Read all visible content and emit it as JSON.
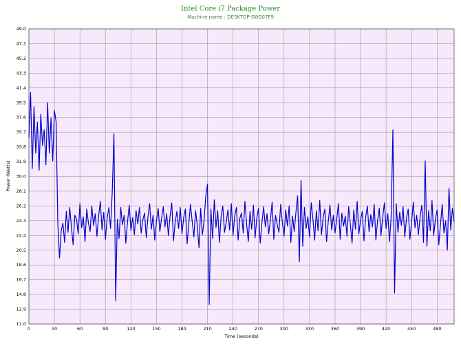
{
  "chart_data": {
    "type": "line",
    "title": "Intel Core i7 Package Power",
    "subtitle": "Machine name : DESKTOP-G8G07F9",
    "ylabel": "Power (Watts)",
    "xlabel": "Time (seconds)",
    "color": "#0000cc",
    "grid": true,
    "xlim": [
      0,
      500
    ],
    "xticks": [
      0,
      30,
      60,
      90,
      120,
      150,
      180,
      210,
      240,
      270,
      300,
      330,
      360,
      390,
      420,
      450,
      480
    ],
    "ylim": [
      11,
      49
    ],
    "yticks": [
      {
        "value": 11,
        "label": "11.0"
      },
      12.9,
      14.8,
      16.7,
      18.6,
      20.5,
      22.4,
      24.3,
      26.2,
      28.1,
      {
        "value": 30,
        "label": "30.0"
      },
      31.9,
      33.8,
      35.7,
      37.6,
      39.5,
      41.4,
      43.3,
      45.2,
      47.1,
      {
        "value": 49,
        "label": "49.0"
      }
    ],
    "x": [
      0,
      2,
      4,
      6,
      8,
      10,
      12,
      14,
      16,
      18,
      20,
      22,
      24,
      26,
      28,
      30,
      32,
      34,
      36,
      38,
      40,
      42,
      44,
      46,
      48,
      50,
      52,
      54,
      56,
      58,
      60,
      62,
      64,
      66,
      68,
      70,
      72,
      74,
      76,
      78,
      80,
      82,
      84,
      86,
      88,
      90,
      92,
      94,
      96,
      98,
      100,
      102,
      104,
      106,
      108,
      110,
      112,
      114,
      116,
      118,
      120,
      122,
      124,
      126,
      128,
      130,
      132,
      134,
      136,
      138,
      140,
      142,
      144,
      146,
      148,
      150,
      152,
      154,
      156,
      158,
      160,
      162,
      164,
      166,
      168,
      170,
      172,
      174,
      176,
      178,
      180,
      182,
      184,
      186,
      188,
      190,
      192,
      194,
      196,
      198,
      200,
      202,
      204,
      206,
      208,
      210,
      212,
      214,
      216,
      218,
      220,
      222,
      224,
      226,
      228,
      230,
      232,
      234,
      236,
      238,
      240,
      242,
      244,
      246,
      248,
      250,
      252,
      254,
      256,
      258,
      260,
      262,
      264,
      266,
      268,
      270,
      272,
      274,
      276,
      278,
      280,
      282,
      284,
      286,
      288,
      290,
      292,
      294,
      296,
      298,
      300,
      302,
      304,
      306,
      308,
      310,
      312,
      314,
      316,
      318,
      320,
      322,
      324,
      326,
      328,
      330,
      332,
      334,
      336,
      338,
      340,
      342,
      344,
      346,
      348,
      350,
      352,
      354,
      356,
      358,
      360,
      362,
      364,
      366,
      368,
      370,
      372,
      374,
      376,
      378,
      380,
      382,
      384,
      386,
      388,
      390,
      392,
      394,
      396,
      398,
      400,
      402,
      404,
      406,
      408,
      410,
      412,
      414,
      416,
      418,
      420,
      422,
      424,
      426,
      428,
      430,
      432,
      434,
      436,
      438,
      440,
      442,
      444,
      446,
      448,
      450,
      452,
      454,
      456,
      458,
      460,
      462,
      464,
      466,
      468,
      470,
      472,
      474,
      476,
      478,
      480,
      482,
      484,
      486,
      488,
      490,
      492,
      494,
      496,
      498,
      500
    ],
    "values": [
      35,
      40.8,
      31,
      39,
      33,
      37,
      30.8,
      38,
      34,
      36,
      31.5,
      39.5,
      33,
      37.5,
      32,
      38.5,
      37,
      24,
      19.5,
      23,
      24,
      21.5,
      25.5,
      22.8,
      26,
      23.5,
      21.2,
      25,
      24.5,
      22.6,
      26.5,
      23.4,
      24.8,
      21.6,
      25.8,
      24,
      22.9,
      26.2,
      23.7,
      25.2,
      22.3,
      24.9,
      26.8,
      23.1,
      25.4,
      21.9,
      24.6,
      26,
      23.3,
      28,
      35.5,
      14,
      24.5,
      22,
      26,
      23.8,
      25,
      21.4,
      24.2,
      26.3,
      23,
      24.7,
      22.5,
      25.6,
      23.9,
      26,
      22.7,
      24.4,
      25.3,
      22.1,
      24.8,
      26.5,
      23.2,
      25,
      21.8,
      24.3,
      25.9,
      22.9,
      24.6,
      26.1,
      23.5,
      25.2,
      22.4,
      24.9,
      26.6,
      21.7,
      24.1,
      25.5,
      23.3,
      26,
      22.6,
      24.7,
      25.8,
      21.3,
      23.9,
      26.4,
      24.2,
      22.2,
      25.6,
      23.7,
      20.8,
      25.9,
      22.5,
      24.3,
      27.5,
      29,
      13.5,
      25.8,
      22,
      27,
      23.4,
      25.6,
      21.5,
      24.8,
      26.2,
      22.8,
      24.1,
      25.7,
      23.1,
      26.5,
      22.4,
      24.9,
      26,
      21.8,
      24.6,
      25.3,
      22.7,
      26.8,
      23.9,
      21.6,
      25.5,
      23.2,
      26.3,
      22.1,
      24.7,
      25.9,
      21.4,
      24,
      26.1,
      23.5,
      25.2,
      22.6,
      24.4,
      26.7,
      21.9,
      25,
      23.8,
      22.8,
      26.4,
      24.1,
      22.3,
      25.7,
      23.6,
      26.2,
      21.5,
      24.9,
      22.9,
      25.4,
      27.5,
      19,
      29.5,
      21,
      26,
      23.3,
      24.8,
      22.2,
      26.6,
      24.5,
      21.8,
      25.6,
      23,
      26.9,
      22.5,
      24.7,
      25.8,
      21.6,
      24.2,
      26.3,
      23.1,
      25,
      22.7,
      24.6,
      26.5,
      21.9,
      25.3,
      23.6,
      24.9,
      22.3,
      26.1,
      23.8,
      21.4,
      25.7,
      23.2,
      26.8,
      22.6,
      24.4,
      25.5,
      21.7,
      24.8,
      26.2,
      22.9,
      25.1,
      23.5,
      26.4,
      21.8,
      24.3,
      25.9,
      22.4,
      24.7,
      26.6,
      23.3,
      25.2,
      21.6,
      24.9,
      36,
      15,
      26.5,
      22.8,
      25.4,
      23.7,
      26.1,
      22.2,
      24.6,
      25.8,
      21.9,
      24.1,
      26.7,
      23.4,
      25,
      22.5,
      24.8,
      26.3,
      21.5,
      32,
      21,
      25.6,
      23,
      26.9,
      22.4,
      24.5,
      25.7,
      21.2,
      23.9,
      26.4,
      22.7,
      24.3,
      20.5,
      28.5,
      23.1,
      25.9,
      24.2
    ]
  }
}
